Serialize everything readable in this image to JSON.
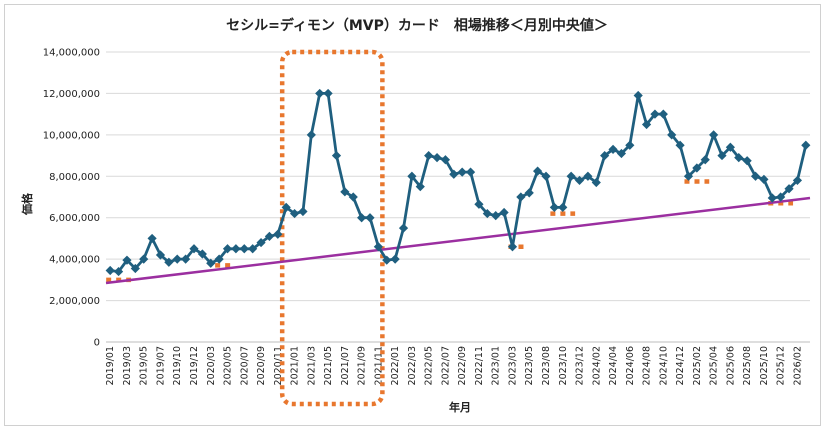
{
  "chart_data": {
    "type": "line",
    "title": "セシル=ディモン（MVP）カード　相場推移＜月別中央値＞",
    "xlabel": "年月",
    "ylabel": "価格",
    "ylim": [
      0,
      14000000
    ],
    "yticks": [
      0,
      2000000,
      4000000,
      6000000,
      8000000,
      10000000,
      12000000,
      14000000
    ],
    "ytick_labels": [
      "0",
      "2,000,000",
      "4,000,000",
      "6,000,000",
      "8,000,000",
      "10,000,000",
      "12,000,000",
      "14,000,000"
    ],
    "x_tick_labels": [
      "2019/01",
      "2019/03",
      "2019/05",
      "2019/07",
      "2019/10",
      "2019/12",
      "2020/03",
      "2020/05",
      "2020/07",
      "2020/09",
      "2020/11",
      "2021/01",
      "2021/03",
      "2021/05",
      "2021/07",
      "2021/09",
      "2021/11",
      "2022/01",
      "2022/03",
      "2022/05",
      "2022/07",
      "2022/09",
      "2022/11",
      "2023/01",
      "2023/03",
      "2023/05",
      "2023/08",
      "2023/10",
      "2023/12",
      "2024/02",
      "2024/04",
      "2024/06",
      "2024/08",
      "2024/10",
      "2024/12",
      "2025/02",
      "2025/04",
      "2025/06",
      "2025/08",
      "2025/10",
      "2025/12",
      "2026/02"
    ],
    "grid": true,
    "legend": "none",
    "series": [
      {
        "color": "#1f5f7f",
        "marker": "diamond",
        "values": [
          3450000,
          3400000,
          3950000,
          3550000,
          4000000,
          5000000,
          4200000,
          3850000,
          4000000,
          4000000,
          4500000,
          4250000,
          3800000,
          4000000,
          4500000,
          4500000,
          4500000,
          4500000,
          4800000,
          5100000,
          5200000,
          6500000,
          6200000,
          6300000,
          10000000,
          12000000,
          12000000,
          9000000,
          7250000,
          7000000,
          6000000,
          6000000,
          4600000,
          3950000,
          4000000,
          5500000,
          8000000,
          7500000,
          9000000,
          8900000,
          8800000,
          8100000,
          8200000,
          8200000,
          6650000,
          6200000,
          6100000,
          6250000,
          4600000,
          7000000,
          7200000,
          8250000,
          8000000,
          6500000,
          6500000,
          8000000,
          7800000,
          8000000,
          7700000,
          9000000,
          9300000,
          9100000,
          9500000,
          11900000,
          10500000,
          11000000,
          11000000,
          10000000,
          9500000,
          8000000,
          8400000,
          8800000,
          10000000,
          9000000,
          9400000,
          8900000,
          8750000,
          8000000,
          7850000,
          6950000,
          7000000,
          7400000,
          7800000,
          9500000
        ]
      }
    ],
    "trendline": {
      "color": "#9b2fa0",
      "start": 2850000,
      "end": 6950000
    },
    "annotation_color": "#e8772e"
  }
}
